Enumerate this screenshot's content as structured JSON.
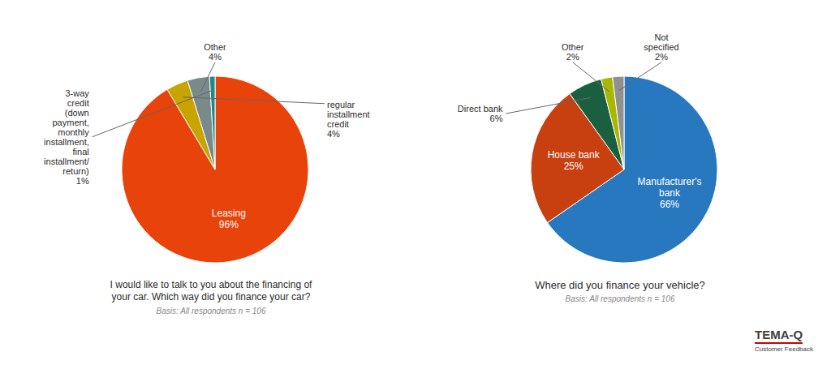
{
  "chart_data": [
    {
      "type": "pie",
      "title": "I would like to talk to you about the financing of\nyour car. Which way did you finance your car?",
      "subtitle": "Basis: All respondents n = 106",
      "categories": [
        "Leasing",
        "regular\ninstallment\ncredit",
        "Other",
        "3-way\ncredit\n(down\npayment,\nmonthly\ninstallment,\nfinal\ninstallment/\nreturn)"
      ],
      "values": [
        96,
        4,
        4,
        1
      ],
      "value_labels": [
        "96%",
        "4%",
        "4%",
        "1%"
      ],
      "colors": [
        "#E8430A",
        "#C8A400",
        "#7A8A8A",
        "#1A8A8A"
      ]
    },
    {
      "type": "pie",
      "title": "Where did you finance your vehicle?",
      "subtitle": "Basis: All respondents n = 106",
      "categories": [
        "Manufacturer's\nbank",
        "House bank",
        "Direct bank",
        "Other",
        "Not\nspecified"
      ],
      "values": [
        66,
        25,
        6,
        2,
        2
      ],
      "value_labels": [
        "66%",
        "25%",
        "6%",
        "2%",
        "2%"
      ],
      "colors": [
        "#2878C0",
        "#C84010",
        "#1A6040",
        "#A8B800",
        "#909090"
      ],
      "annotations": [
        "TEMA-Q",
        "Customer Feedback"
      ]
    }
  ]
}
